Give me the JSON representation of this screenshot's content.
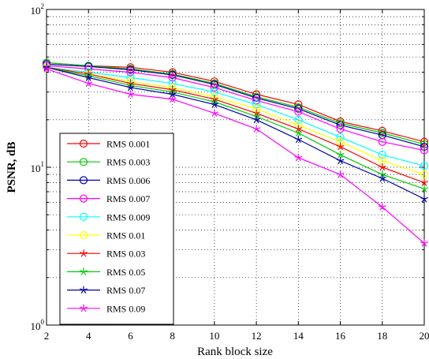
{
  "chart_data": {
    "type": "line",
    "title": "",
    "xlabel": "Rank block size",
    "ylabel": "PSNR, dB",
    "x": [
      2,
      4,
      6,
      8,
      10,
      12,
      14,
      16,
      18,
      20
    ],
    "xlim": [
      2,
      20
    ],
    "xticks": [
      "2",
      "4",
      "6",
      "8",
      "10",
      "12",
      "14",
      "16",
      "18",
      "20"
    ],
    "ylim": [
      1,
      100
    ],
    "yscale": "log",
    "yticks": [
      {
        "base": "10",
        "exp": "0",
        "value": 1
      },
      {
        "base": "10",
        "exp": "1",
        "value": 10
      },
      {
        "base": "10",
        "exp": "2",
        "value": 100
      }
    ],
    "grid": true,
    "legend_position": "bottom-left",
    "series": [
      {
        "name": "RMS 0.001",
        "color": "#ff0000",
        "marker": "circle",
        "values": [
          46,
          44,
          43,
          40,
          35,
          29,
          25,
          19.5,
          17,
          14.5
        ]
      },
      {
        "name": "RMS 0.003",
        "color": "#00cc00",
        "marker": "circle",
        "values": [
          46,
          44,
          42,
          39,
          34,
          28,
          24,
          19,
          16.5,
          14
        ]
      },
      {
        "name": "RMS 0.006",
        "color": "#0000aa",
        "marker": "circle",
        "values": [
          45,
          43.5,
          41.5,
          38.5,
          33.5,
          27.5,
          23.5,
          18.5,
          16,
          13.5
        ]
      },
      {
        "name": "RMS 0.007",
        "color": "#ff00ff",
        "marker": "circle",
        "values": [
          44,
          42,
          40,
          37,
          32,
          26.5,
          22.5,
          17.5,
          14.5,
          12.8
        ]
      },
      {
        "name": "RMS 0.009",
        "color": "#00ffff",
        "marker": "circle",
        "values": [
          43,
          40,
          37,
          34,
          30,
          25,
          20,
          15.5,
          12,
          10.2
        ]
      },
      {
        "name": "RMS 0.01",
        "color": "#ffff00",
        "marker": "circle",
        "values": [
          43,
          39,
          35,
          32,
          28,
          23.5,
          18.5,
          14.5,
          11,
          9
        ]
      },
      {
        "name": "RMS 0.03",
        "color": "#ff0000",
        "marker": "star",
        "values": [
          43,
          39,
          34,
          31,
          27,
          22,
          17.5,
          13.5,
          10,
          8
        ]
      },
      {
        "name": "RMS 0.05",
        "color": "#00cc00",
        "marker": "star",
        "values": [
          43,
          38,
          33,
          30,
          26,
          21,
          16.5,
          12,
          9,
          7.3
        ]
      },
      {
        "name": "RMS 0.07",
        "color": "#0000aa",
        "marker": "star",
        "values": [
          43,
          37,
          32,
          29,
          25,
          20,
          15,
          11,
          8.5,
          6.3
        ]
      },
      {
        "name": "RMS 0.09",
        "color": "#ff00ff",
        "marker": "star",
        "values": [
          42,
          34,
          29,
          27,
          22,
          17.5,
          11.5,
          9,
          5.6,
          3.3
        ]
      }
    ]
  }
}
